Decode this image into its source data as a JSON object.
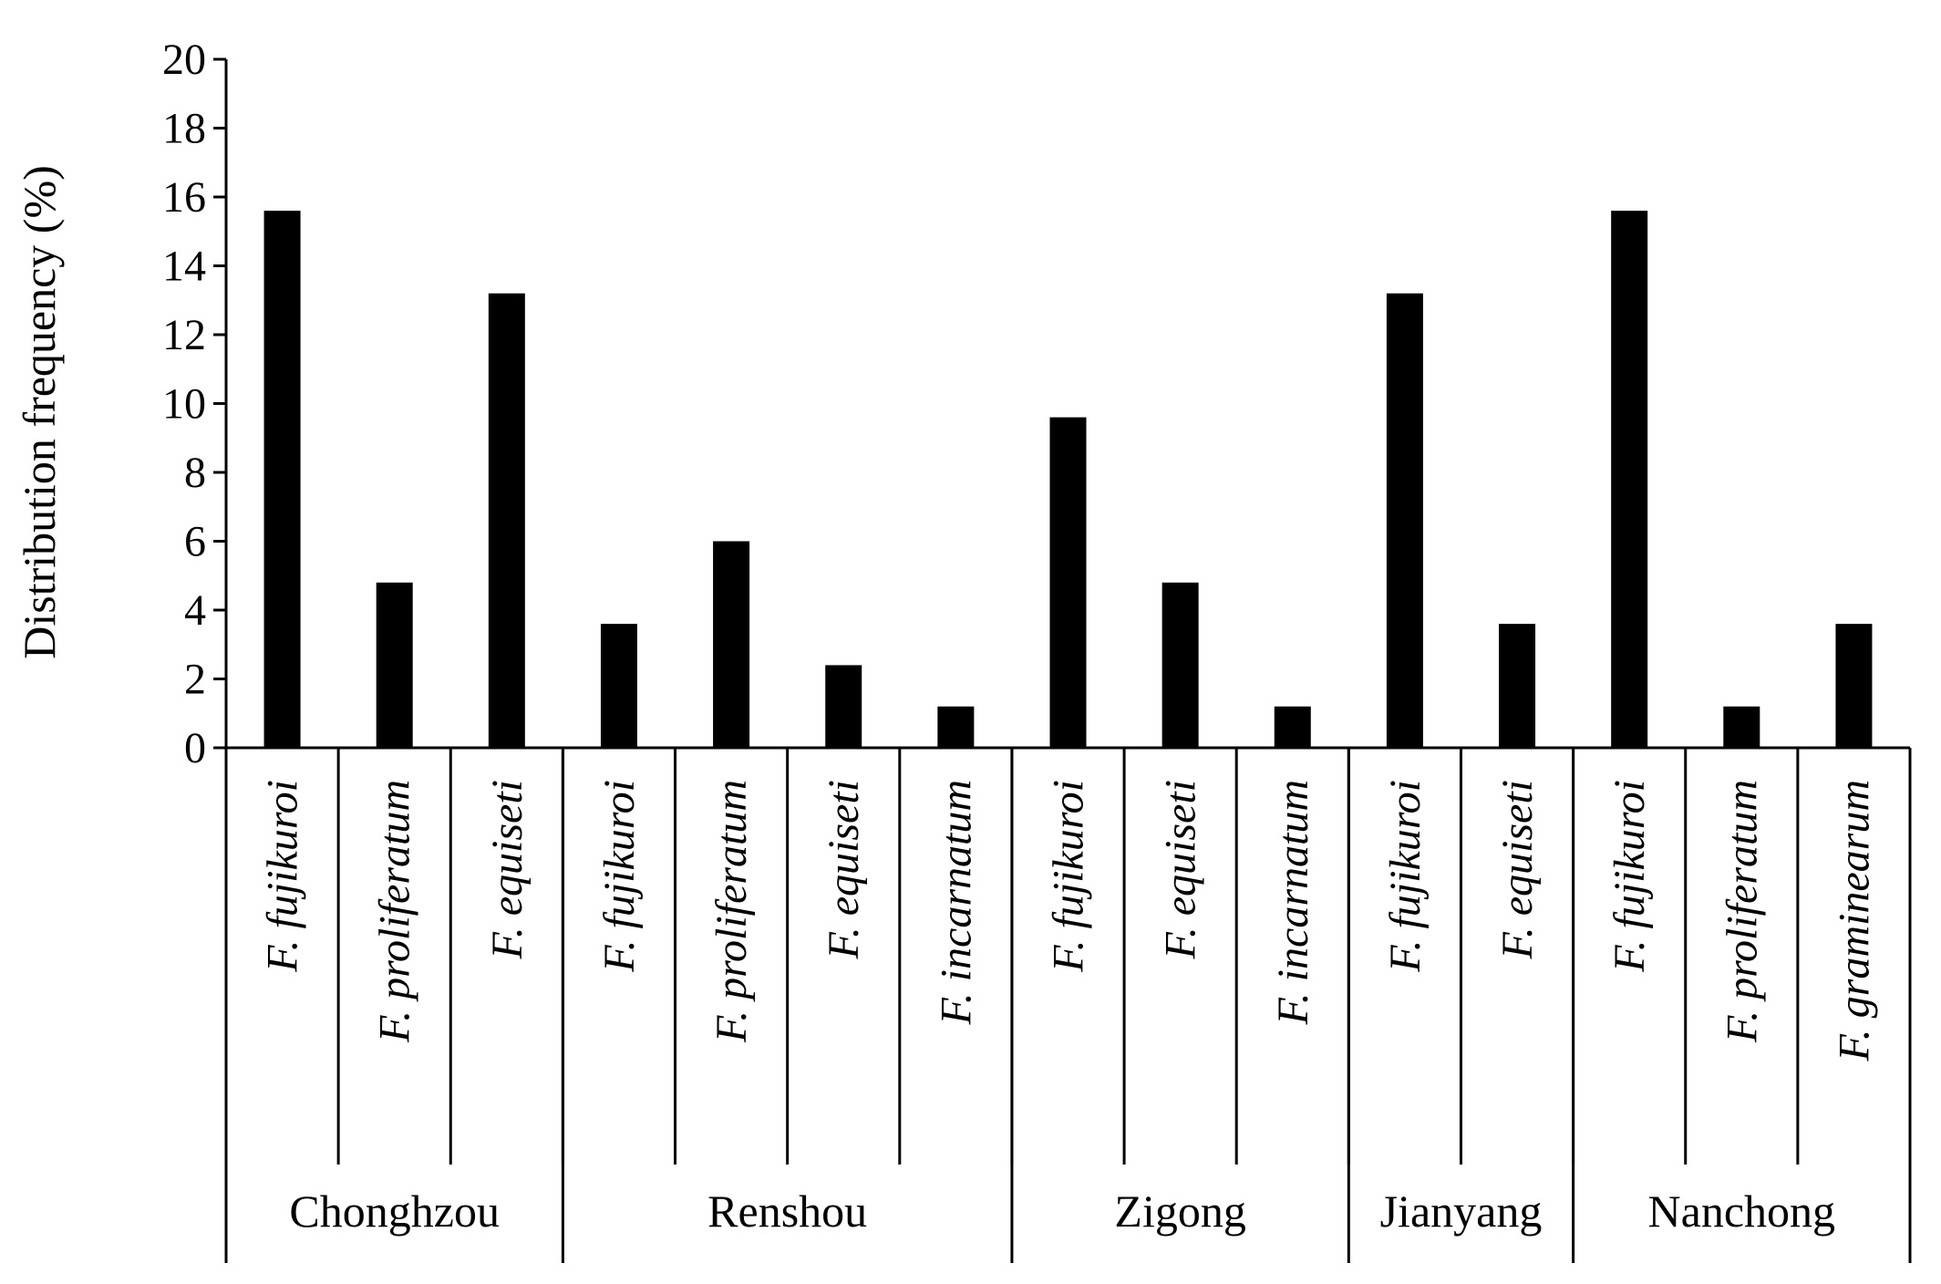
{
  "chart_data": {
    "type": "bar",
    "ylabel": "Distribution frequency (%)",
    "xlabel": "",
    "ylim": [
      0,
      20
    ],
    "yticks": [
      0,
      2,
      4,
      6,
      8,
      10,
      12,
      14,
      16,
      18,
      20
    ],
    "grid": false,
    "bar_color": "#000000",
    "categories": [
      {
        "species": "F. fujikuroi",
        "site": "Chonghzou",
        "value": 15.6
      },
      {
        "species": "F. proliferatum",
        "site": "Chonghzou",
        "value": 4.8
      },
      {
        "species": "F. equiseti",
        "site": "Chonghzou",
        "value": 13.2
      },
      {
        "species": "F. fujikuroi",
        "site": "Renshou",
        "value": 3.6
      },
      {
        "species": "F. proliferatum",
        "site": "Renshou",
        "value": 6.0
      },
      {
        "species": "F. equiseti",
        "site": "Renshou",
        "value": 2.4
      },
      {
        "species": "F. incarnatum",
        "site": "Renshou",
        "value": 1.2
      },
      {
        "species": "F. fujikuroi",
        "site": "Zigong",
        "value": 9.6
      },
      {
        "species": "F. equiseti",
        "site": "Zigong",
        "value": 4.8
      },
      {
        "species": "F. incarnatum",
        "site": "Zigong",
        "value": 1.2
      },
      {
        "species": "F. fujikuroi",
        "site": "Jianyang",
        "value": 13.2
      },
      {
        "species": "F. equiseti",
        "site": "Jianyang",
        "value": 3.6
      },
      {
        "species": "F. fujikuroi",
        "site": "Nanchong",
        "value": 15.6
      },
      {
        "species": "F. proliferatum",
        "site": "Nanchong",
        "value": 1.2
      },
      {
        "species": "F. graminearum",
        "site": "Nanchong",
        "value": 3.6
      }
    ],
    "groups": [
      {
        "site": "Chonghzou",
        "count": 3
      },
      {
        "site": "Renshou",
        "count": 4
      },
      {
        "site": "Zigong",
        "count": 3
      },
      {
        "site": "Jianyang",
        "count": 2
      },
      {
        "site": "Nanchong",
        "count": 3
      }
    ]
  }
}
